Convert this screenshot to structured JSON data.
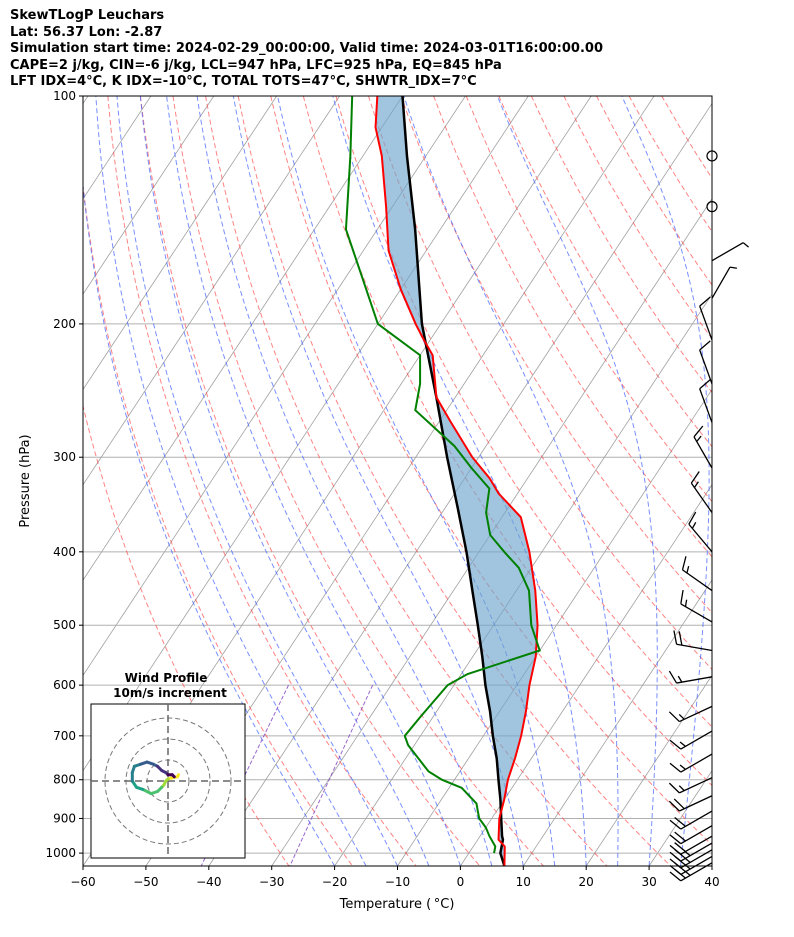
{
  "title_lines": [
    "SkewTLogP Leuchars",
    "Lat: 56.37   Lon: -2.87",
    "Simulation start time: 2024-02-29_00:00:00, Valid time: 2024-03-01T16:00:00.00",
    "CAPE=2 j/kg, CIN=-6 j/kg, LCL=947 hPa, LFC=925 hPa, EQ=845 hPa",
    "LFT IDX=4°C, K IDX=-10°C, TOTAL TOTS=47°C, SHWTR_IDX=7°C"
  ],
  "chart_data": {
    "type": "skew-t log-p",
    "xlabel": "Temperature ( °C)",
    "ylabel": "Pressure (hPa)",
    "xlim": [
      -60,
      40
    ],
    "ylim": [
      1040,
      100
    ],
    "x_ticks": [
      "−60",
      "−50",
      "−40",
      "−30",
      "−20",
      "−10",
      "0",
      "10",
      "20",
      "30",
      "40"
    ],
    "x_tick_values": [
      -60,
      -50,
      -40,
      -30,
      -20,
      -10,
      0,
      10,
      20,
      30,
      40
    ],
    "y_ticks": [
      "100",
      "200",
      "300",
      "400",
      "500",
      "600",
      "700",
      "800",
      "900",
      "1000"
    ],
    "y_tick_values": [
      100,
      200,
      300,
      400,
      500,
      600,
      700,
      800,
      900,
      1000
    ],
    "grid": true,
    "colors": {
      "temperature": "#ff0000",
      "dewpoint": "#008000",
      "parcel": "#000000",
      "cape_fill": "#6ea6cd",
      "dry_adiabat": "#ff4040",
      "moist_adiabat": "#4060ff",
      "mixing_ratio": "#8040c0",
      "isotherm": "#a0a0a0"
    },
    "series": [
      {
        "name": "",
        "role": "temperature",
        "points": [
          [
            1040,
            7
          ],
          [
            980,
            5
          ],
          [
            960,
            3.3
          ],
          [
            900,
            1.2
          ],
          [
            850,
            0
          ],
          [
            800,
            -1.5
          ],
          [
            750,
            -2.6
          ],
          [
            700,
            -4
          ],
          [
            650,
            -5.8
          ],
          [
            600,
            -8
          ],
          [
            550,
            -10
          ],
          [
            500,
            -13
          ],
          [
            450,
            -17
          ],
          [
            400,
            -22
          ],
          [
            360,
            -27
          ],
          [
            335,
            -33
          ],
          [
            320,
            -36
          ],
          [
            300,
            -41
          ],
          [
            270,
            -48
          ],
          [
            250,
            -53
          ],
          [
            220,
            -58
          ],
          [
            210,
            -61
          ],
          [
            200,
            -64
          ],
          [
            180,
            -70
          ],
          [
            160,
            -76
          ],
          [
            140,
            -81
          ],
          [
            120,
            -87
          ],
          [
            110,
            -91
          ],
          [
            100,
            -94
          ]
        ]
      },
      {
        "name": "",
        "role": "dewpoint",
        "points": [
          [
            1000,
            4
          ],
          [
            980,
            3.5
          ],
          [
            950,
            1.5
          ],
          [
            925,
            0
          ],
          [
            900,
            -2
          ],
          [
            880,
            -3
          ],
          [
            860,
            -4
          ],
          [
            820,
            -8
          ],
          [
            800,
            -12
          ],
          [
            780,
            -15
          ],
          [
            720,
            -21
          ],
          [
            700,
            -22.5
          ],
          [
            660,
            -22
          ],
          [
            600,
            -21
          ],
          [
            580,
            -19
          ],
          [
            540,
            -10
          ],
          [
            500,
            -14
          ],
          [
            450,
            -18
          ],
          [
            420,
            -22
          ],
          [
            400,
            -26
          ],
          [
            380,
            -30
          ],
          [
            355,
            -33
          ],
          [
            330,
            -35
          ],
          [
            310,
            -40
          ],
          [
            290,
            -45
          ],
          [
            260,
            -55
          ],
          [
            240,
            -57
          ],
          [
            220,
            -60
          ],
          [
            200,
            -70
          ],
          [
            150,
            -85
          ],
          [
            120,
            -92
          ],
          [
            100,
            -98
          ]
        ]
      },
      {
        "name": "",
        "role": "parcel",
        "points": [
          [
            1040,
            7
          ],
          [
            1000,
            5
          ],
          [
            960,
            4
          ],
          [
            950,
            3.5
          ],
          [
            900,
            1.5
          ],
          [
            850,
            -0.6
          ],
          [
            800,
            -3
          ],
          [
            750,
            -5.5
          ],
          [
            700,
            -8.5
          ],
          [
            650,
            -11.5
          ],
          [
            600,
            -15
          ],
          [
            550,
            -18.5
          ],
          [
            500,
            -22.5
          ],
          [
            450,
            -27
          ],
          [
            400,
            -32
          ],
          [
            350,
            -38
          ],
          [
            300,
            -45
          ],
          [
            250,
            -53
          ],
          [
            200,
            -63
          ],
          [
            150,
            -74
          ],
          [
            120,
            -83
          ],
          [
            100,
            -90
          ]
        ]
      }
    ],
    "wind_barbs": {
      "x_temperature": 40,
      "pressures": [
        1030,
        1010,
        990,
        970,
        950,
        920,
        880,
        840,
        795,
        740,
        690,
        640,
        585,
        540,
        495,
        450,
        400,
        355,
        310,
        270,
        240,
        210,
        185,
        165,
        140,
        120
      ],
      "speeds_kt": [
        25,
        25,
        25,
        25,
        20,
        20,
        20,
        20,
        15,
        15,
        15,
        15,
        15,
        20,
        15,
        15,
        15,
        15,
        15,
        10,
        10,
        10,
        5,
        5,
        0,
        0
      ],
      "directions_deg": [
        240,
        240,
        240,
        240,
        240,
        240,
        240,
        245,
        245,
        240,
        240,
        245,
        260,
        280,
        300,
        305,
        320,
        325,
        330,
        340,
        340,
        340,
        30,
        60,
        0,
        0
      ]
    },
    "inset": {
      "title": "Wind Profile",
      "subtitle": "10m/s increment",
      "rings": [
        10,
        20,
        30
      ],
      "hodograph_points": [
        [
          5,
          3
        ],
        [
          4.5,
          2
        ],
        [
          2,
          1.5
        ],
        [
          0,
          1
        ],
        [
          -1,
          0
        ],
        [
          -2,
          -2
        ],
        [
          -3,
          -3
        ],
        [
          -5,
          -5
        ],
        [
          -8,
          -6
        ],
        [
          -12,
          -4
        ],
        [
          -15,
          -3
        ],
        [
          -17,
          0
        ],
        [
          -17,
          4
        ],
        [
          -16,
          7
        ],
        [
          -13,
          8
        ],
        [
          -10,
          9
        ],
        [
          -7,
          8
        ],
        [
          -5,
          7
        ],
        [
          -3,
          5
        ],
        [
          -1,
          4
        ],
        [
          0,
          3
        ],
        [
          2,
          3
        ],
        [
          3,
          2
        ]
      ],
      "colors": [
        "#fde725",
        "#a0da39",
        "#4ac16d",
        "#1fa187",
        "#277f8e",
        "#365c8d",
        "#46327e",
        "#440154"
      ]
    }
  }
}
